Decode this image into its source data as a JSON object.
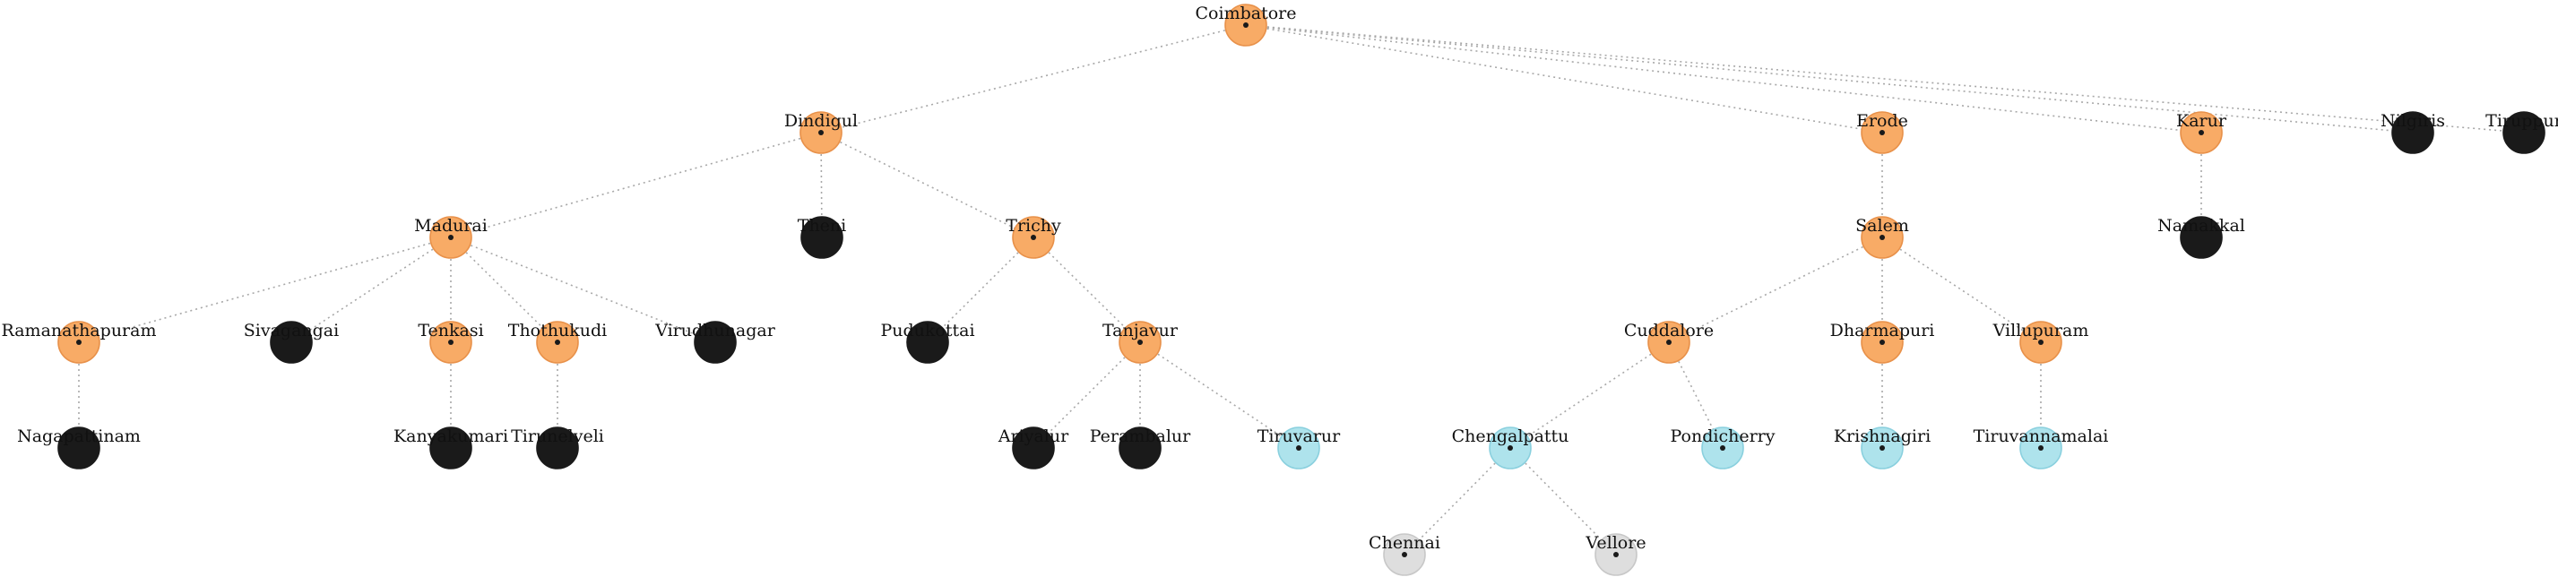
{
  "colors": {
    "orange": "#f8ab66",
    "orange_stroke": "#e8914a",
    "black": "#1a1a1a",
    "black_stroke": "#1a1a1a",
    "cyan": "#aee3ec",
    "cyan_stroke": "#8ad0de",
    "gray": "#dedede",
    "gray_stroke": "#c8c8c8"
  },
  "nodes": [
    {
      "id": "coimbatore",
      "label": "Coimbatore",
      "color": "orange"
    },
    {
      "id": "dindigul",
      "label": "Dindigul",
      "color": "orange"
    },
    {
      "id": "erode",
      "label": "Erode",
      "color": "orange"
    },
    {
      "id": "karur",
      "label": "Karur",
      "color": "orange"
    },
    {
      "id": "nilgiris",
      "label": "Nilgiris",
      "color": "black"
    },
    {
      "id": "tiruppur",
      "label": "Tiruppur",
      "color": "black"
    },
    {
      "id": "madurai",
      "label": "Madurai",
      "color": "orange"
    },
    {
      "id": "theni",
      "label": "Theni",
      "color": "black"
    },
    {
      "id": "trichy",
      "label": "Trichy",
      "color": "orange"
    },
    {
      "id": "salem",
      "label": "Salem",
      "color": "orange"
    },
    {
      "id": "namakkal",
      "label": "Namakkal",
      "color": "black"
    },
    {
      "id": "ramanathapuram",
      "label": "Ramanathapuram",
      "color": "orange"
    },
    {
      "id": "sivagangai",
      "label": "Sivagangai",
      "color": "black"
    },
    {
      "id": "tenkasi",
      "label": "Tenkasi",
      "color": "orange"
    },
    {
      "id": "thothukudi",
      "label": "Thothukudi",
      "color": "orange"
    },
    {
      "id": "virudhunagar",
      "label": "Virudhunagar",
      "color": "black"
    },
    {
      "id": "pudukottai",
      "label": "Pudukottai",
      "color": "black"
    },
    {
      "id": "tanjavur",
      "label": "Tanjavur",
      "color": "orange"
    },
    {
      "id": "cuddalore",
      "label": "Cuddalore",
      "color": "orange"
    },
    {
      "id": "dharmapuri",
      "label": "Dharmapuri",
      "color": "orange"
    },
    {
      "id": "villupuram",
      "label": "Villupuram",
      "color": "orange"
    },
    {
      "id": "nagapattinam",
      "label": "Nagapattinam",
      "color": "black"
    },
    {
      "id": "kanyakumari",
      "label": "Kanyakumari",
      "color": "black"
    },
    {
      "id": "tirunelveli",
      "label": "Tirunelveli",
      "color": "black"
    },
    {
      "id": "ariyalur",
      "label": "Ariyalur",
      "color": "black"
    },
    {
      "id": "perambalur",
      "label": "Perambalur",
      "color": "black"
    },
    {
      "id": "tiruvarur",
      "label": "Tiruvarur",
      "color": "cyan"
    },
    {
      "id": "chengalpattu",
      "label": "Chengalpattu",
      "color": "cyan"
    },
    {
      "id": "pondicherry",
      "label": "Pondicherry",
      "color": "cyan"
    },
    {
      "id": "krishnagiri",
      "label": "Krishnagiri",
      "color": "cyan"
    },
    {
      "id": "tiruvannamalai",
      "label": "Tiruvannamalai",
      "color": "cyan"
    },
    {
      "id": "chennai",
      "label": "Chennai",
      "color": "gray"
    },
    {
      "id": "vellore",
      "label": "Vellore",
      "color": "gray"
    }
  ],
  "edges": [
    [
      "coimbatore",
      "dindigul"
    ],
    [
      "coimbatore",
      "erode"
    ],
    [
      "coimbatore",
      "karur"
    ],
    [
      "coimbatore",
      "nilgiris"
    ],
    [
      "coimbatore",
      "tiruppur"
    ],
    [
      "dindigul",
      "madurai"
    ],
    [
      "dindigul",
      "theni"
    ],
    [
      "dindigul",
      "trichy"
    ],
    [
      "erode",
      "salem"
    ],
    [
      "karur",
      "namakkal"
    ],
    [
      "madurai",
      "ramanathapuram"
    ],
    [
      "madurai",
      "sivagangai"
    ],
    [
      "madurai",
      "tenkasi"
    ],
    [
      "madurai",
      "thothukudi"
    ],
    [
      "madurai",
      "virudhunagar"
    ],
    [
      "trichy",
      "pudukottai"
    ],
    [
      "trichy",
      "tanjavur"
    ],
    [
      "salem",
      "cuddalore"
    ],
    [
      "salem",
      "dharmapuri"
    ],
    [
      "salem",
      "villupuram"
    ],
    [
      "ramanathapuram",
      "nagapattinam"
    ],
    [
      "tenkasi",
      "kanyakumari"
    ],
    [
      "thothukudi",
      "tirunelveli"
    ],
    [
      "tanjavur",
      "ariyalur"
    ],
    [
      "tanjavur",
      "perambalur"
    ],
    [
      "tanjavur",
      "tiruvarur"
    ],
    [
      "cuddalore",
      "chengalpattu"
    ],
    [
      "cuddalore",
      "pondicherry"
    ],
    [
      "dharmapuri",
      "krishnagiri"
    ],
    [
      "villupuram",
      "tiruvannamalai"
    ],
    [
      "chengalpattu",
      "chennai"
    ],
    [
      "chengalpattu",
      "vellore"
    ]
  ]
}
